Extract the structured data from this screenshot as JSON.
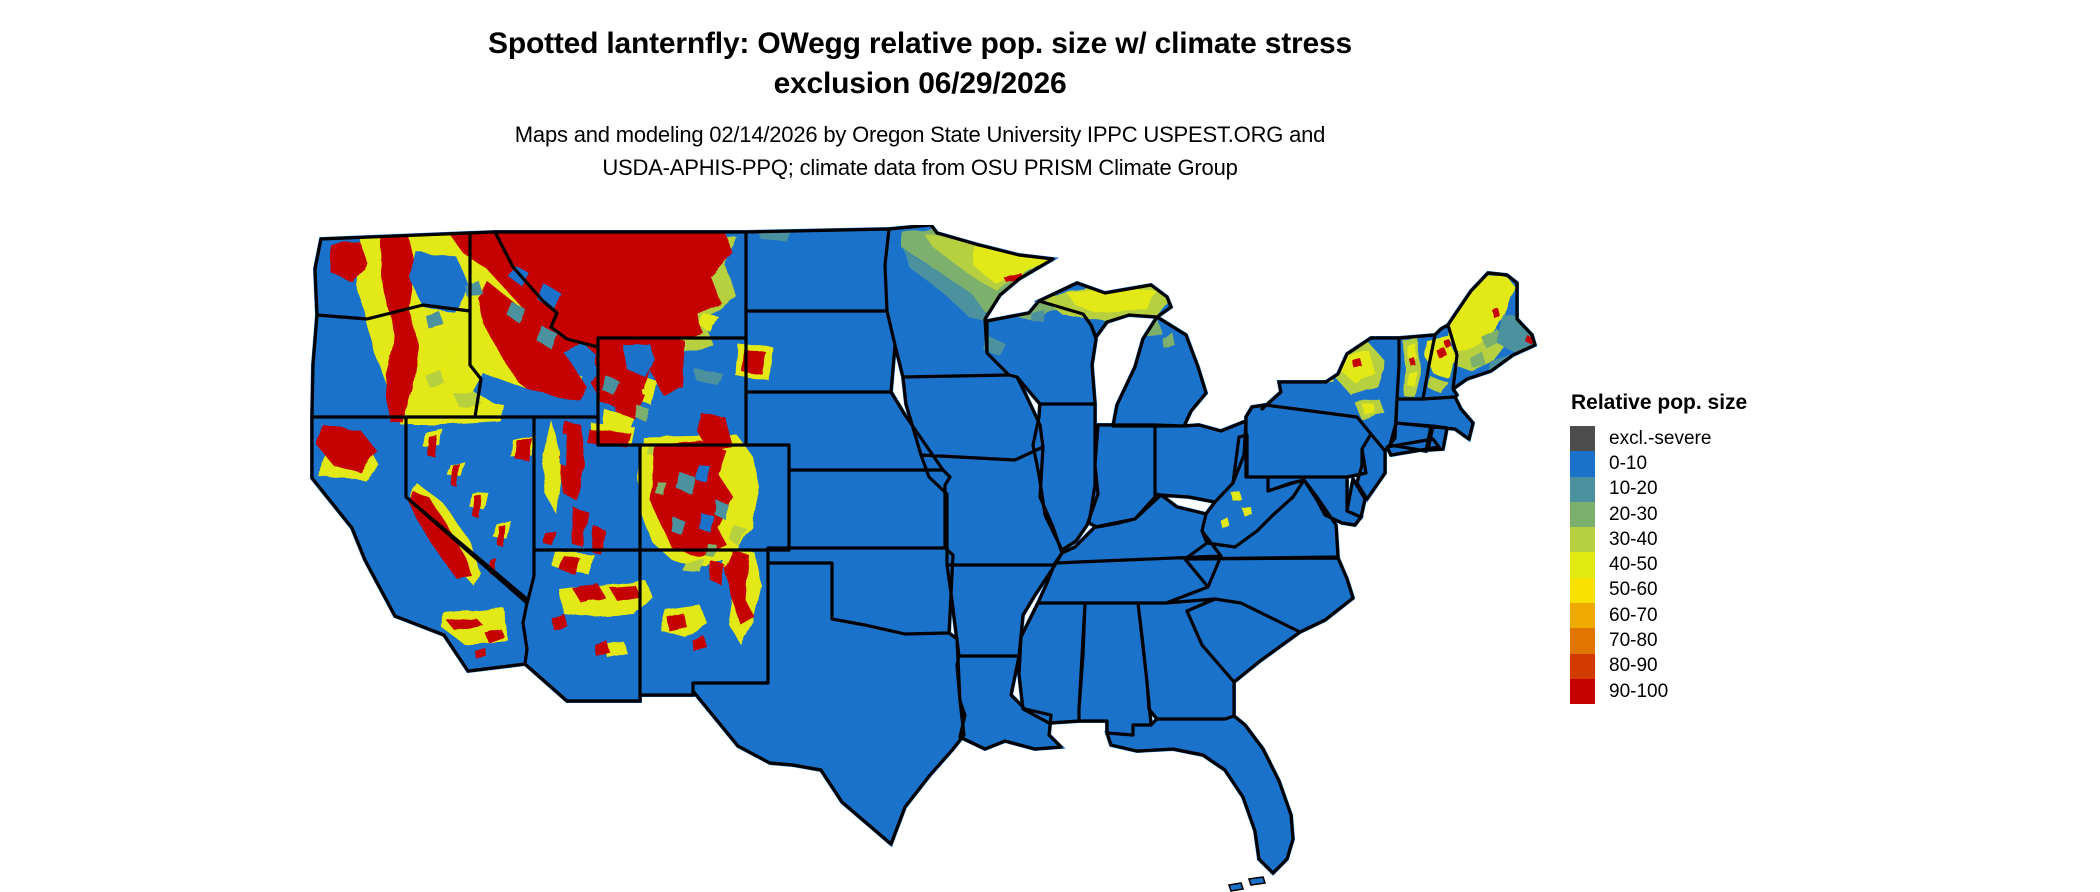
{
  "title": {
    "line1": "Spotted lanternfly: OWegg relative pop. size w/ climate stress",
    "line2": "exclusion 06/29/2026"
  },
  "subtitle": {
    "line1": "Maps and modeling 02/14/2026 by Oregon State University IPPC USPEST.ORG and",
    "line2": "USDA-APHIS-PPQ; climate data from OSU PRISM Climate Group"
  },
  "legend": {
    "title": "Relative pop. size",
    "items": [
      {
        "label": "excl.-severe",
        "color": "#4D4D4D"
      },
      {
        "label": "0-10",
        "color": "#1B72CB"
      },
      {
        "label": "10-20",
        "color": "#4B929E"
      },
      {
        "label": "20-30",
        "color": "#7BB06C"
      },
      {
        "label": "30-40",
        "color": "#B6D03F"
      },
      {
        "label": "40-50",
        "color": "#E3E912"
      },
      {
        "label": "50-60",
        "color": "#F8E000"
      },
      {
        "label": "60-70",
        "color": "#EEAA00"
      },
      {
        "label": "70-80",
        "color": "#E07600"
      },
      {
        "label": "80-90",
        "color": "#D33A00"
      },
      {
        "label": "90-100",
        "color": "#C40000"
      }
    ]
  },
  "map": {
    "region": "Contiguous United States",
    "base_category": "0-10",
    "border_color": "#000000",
    "background_color": "#FFFFFF"
  }
}
